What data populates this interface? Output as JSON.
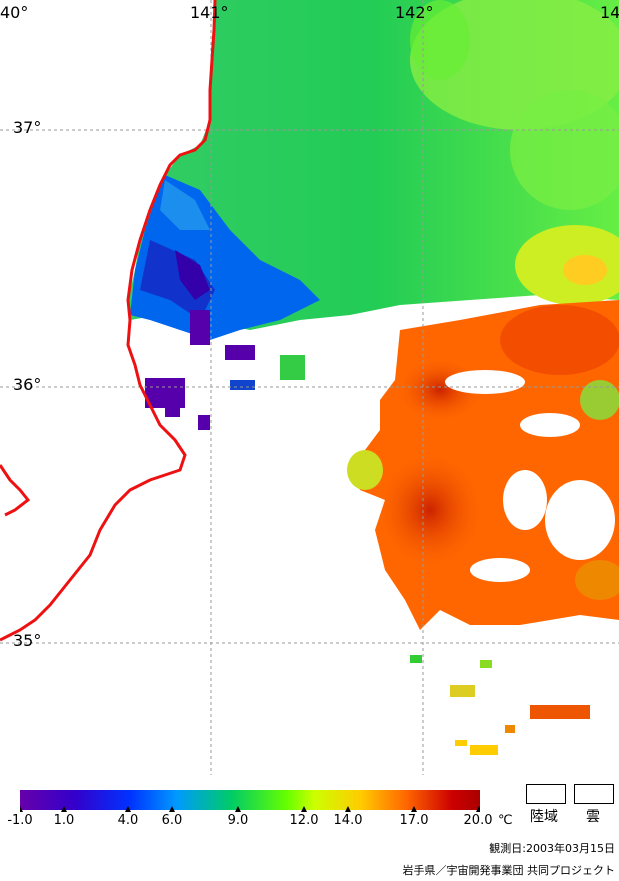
{
  "map": {
    "lon_labels": [
      "40°",
      "141°",
      "142°",
      "14"
    ],
    "lat_labels": [
      "37°",
      "36°",
      "35°"
    ]
  },
  "colorbar": {
    "ticks": [
      "-1.0",
      "1.0",
      "4.0",
      "6.0",
      "9.0",
      "12.0",
      "14.0",
      "17.0",
      "20.0"
    ],
    "tick_values": [
      -1.0,
      1.0,
      4.0,
      6.0,
      9.0,
      12.0,
      14.0,
      17.0,
      20.0
    ],
    "unit": "℃",
    "colors": [
      "#6600aa",
      "#3300cc",
      "#0033ff",
      "#0099ff",
      "#00cc66",
      "#66ff00",
      "#ccff00",
      "#ffcc00",
      "#ff6600",
      "#cc0000",
      "#aa0000"
    ]
  },
  "legend": {
    "land_label": "陸域",
    "cloud_label": "雲"
  },
  "observation_date": "観測日:2003年03月15日",
  "credit": "岩手県／宇宙開発事業団 共同プロジェクト"
}
